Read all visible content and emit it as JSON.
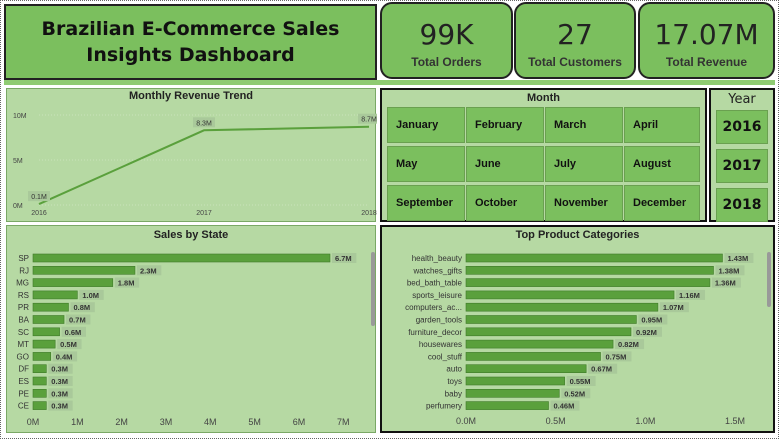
{
  "dashboard": {
    "title": "Brazilian E-Commerce Sales Insights Dashboard"
  },
  "kpis": [
    {
      "value": "99K",
      "label": "Total Orders"
    },
    {
      "value": "27",
      "label": "Total Customers"
    },
    {
      "value": "17.07M",
      "label": "Total Revenue"
    }
  ],
  "month_slicer": {
    "title": "Month",
    "options": [
      "January",
      "February",
      "March",
      "April",
      "May",
      "June",
      "July",
      "August",
      "September",
      "October",
      "November",
      "December"
    ]
  },
  "year_slicer": {
    "title": "Year",
    "options": [
      "2016",
      "2017",
      "2018"
    ]
  },
  "colors": {
    "panel_bg": "#b6d9a3",
    "accent": "#7bbf5e",
    "bar": "#5aa03c",
    "line": "#5aa03c",
    "label_bg": "#a9c99a"
  },
  "chart_data": [
    {
      "type": "line",
      "title": "Monthly Revenue Trend",
      "x": [
        "2016",
        "2017",
        "2018"
      ],
      "series": [
        {
          "values": [
            0.1,
            8.3,
            8.7
          ]
        }
      ],
      "data_labels": [
        "0.1M",
        "8.3M",
        "8.7M"
      ],
      "y_ticks": [
        "0M",
        "5M",
        "10M"
      ],
      "ylim": [
        0,
        10
      ],
      "grid": true
    },
    {
      "type": "bar",
      "orientation": "horizontal",
      "title": "Sales by State",
      "categories": [
        "SP",
        "RJ",
        "MG",
        "RS",
        "PR",
        "BA",
        "SC",
        "MT",
        "GO",
        "DF",
        "ES",
        "PE",
        "CE"
      ],
      "values": [
        6.7,
        2.3,
        1.8,
        1.0,
        0.8,
        0.7,
        0.6,
        0.5,
        0.4,
        0.3,
        0.3,
        0.3,
        0.3
      ],
      "data_labels": [
        "6.7M",
        "2.3M",
        "1.8M",
        "1.0M",
        "0.8M",
        "0.7M",
        "0.6M",
        "0.5M",
        "0.4M",
        "0.3M",
        "0.3M",
        "0.3M",
        "0.3M"
      ],
      "x_ticks": [
        "0M",
        "1M",
        "2M",
        "3M",
        "4M",
        "5M",
        "6M",
        "7M"
      ],
      "xlim": [
        0,
        7.4
      ]
    },
    {
      "type": "bar",
      "orientation": "horizontal",
      "title": "Top Product Categories",
      "categories": [
        "health_beauty",
        "watches_gifts",
        "bed_bath_table",
        "sports_leisure",
        "computers_ac...",
        "garden_tools",
        "furniture_decor",
        "housewares",
        "cool_stuff",
        "auto",
        "toys",
        "baby",
        "perfumery"
      ],
      "values": [
        1.43,
        1.38,
        1.36,
        1.16,
        1.07,
        0.95,
        0.92,
        0.82,
        0.75,
        0.67,
        0.55,
        0.52,
        0.46
      ],
      "data_labels": [
        "1.43M",
        "1.38M",
        "1.36M",
        "1.16M",
        "1.07M",
        "0.95M",
        "0.92M",
        "0.82M",
        "0.75M",
        "0.67M",
        "0.55M",
        "0.52M",
        "0.46M"
      ],
      "x_ticks": [
        "0.0M",
        "0.5M",
        "1.0M",
        "1.5M"
      ],
      "xlim": [
        0,
        1.5
      ]
    }
  ]
}
